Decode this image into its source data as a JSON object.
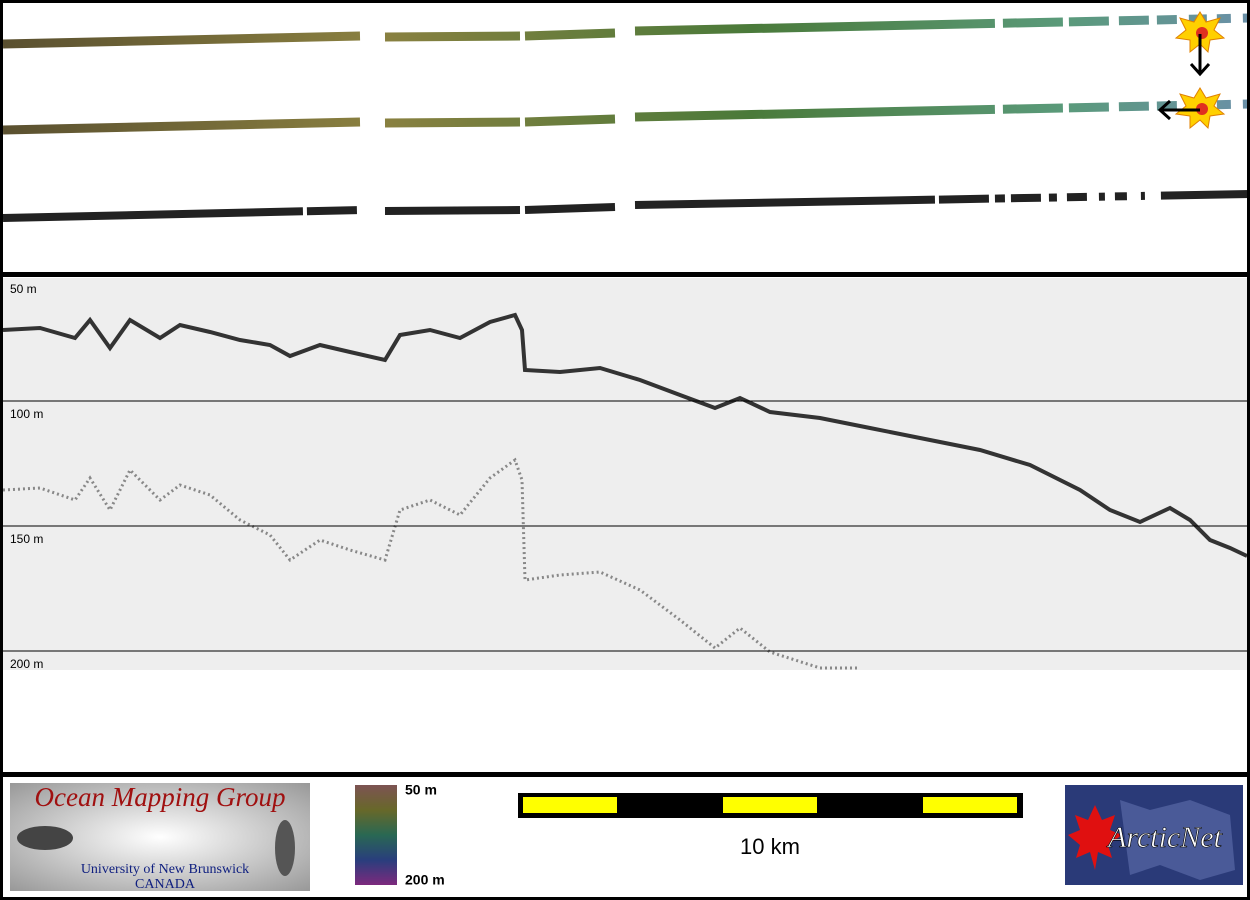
{
  "profile": {
    "depth_labels": [
      "50 m",
      "100 m",
      "150 m",
      "200 m"
    ]
  },
  "footer": {
    "logo": {
      "title": "Ocean Mapping Group",
      "subtitle": "University of New Brunswick",
      "country": "CANADA"
    },
    "colorbar": {
      "top_label": "50 m",
      "bottom_label": "200 m"
    },
    "scale_bar": {
      "label": "10 km"
    },
    "partner_logo": {
      "label": "ArcticNet"
    }
  }
}
